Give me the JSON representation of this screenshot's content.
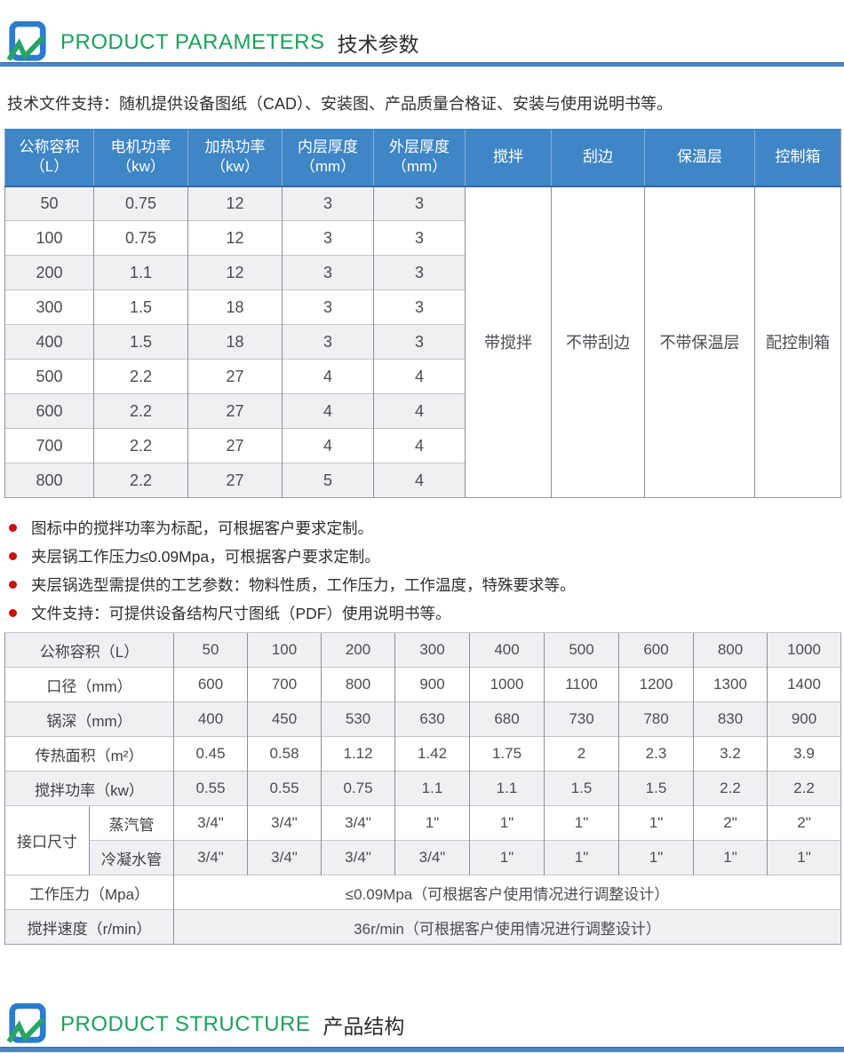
{
  "colors": {
    "header_bg": "#3e86c5",
    "accent_green": "#1ca05c",
    "divider_blue": "#4a84c4",
    "bullet_red": "#cc0d0d",
    "row_alt": "#f0f0f3"
  },
  "header_top": {
    "title_en": "PRODUCT PARAMETERS",
    "title_cn": "技术参数"
  },
  "header_bottom": {
    "title_en": "PRODUCT STRUCTURE",
    "title_cn": "产品结构"
  },
  "intro": "技术文件支持：随机提供设备图纸（CAD）、安装图、产品质量合格证、安装与使用说明书等。",
  "table1": {
    "headers": [
      [
        "公称容积",
        "（L）"
      ],
      [
        "电机功率",
        "（kw）"
      ],
      [
        "加热功率",
        "（kw）"
      ],
      [
        "内层厚度",
        "（mm）"
      ],
      [
        "外层厚度",
        "（mm）"
      ],
      [
        "搅拌"
      ],
      [
        "刮边"
      ],
      [
        "保温层"
      ],
      [
        "控制箱"
      ]
    ],
    "rows": [
      [
        "50",
        "0.75",
        "12",
        "3",
        "3"
      ],
      [
        "100",
        "0.75",
        "12",
        "3",
        "3"
      ],
      [
        "200",
        "1.1",
        "12",
        "3",
        "3"
      ],
      [
        "300",
        "1.5",
        "18",
        "3",
        "3"
      ],
      [
        "400",
        "1.5",
        "18",
        "3",
        "3"
      ],
      [
        "500",
        "2.2",
        "27",
        "4",
        "4"
      ],
      [
        "600",
        "2.2",
        "27",
        "4",
        "4"
      ],
      [
        "700",
        "2.2",
        "27",
        "4",
        "4"
      ],
      [
        "800",
        "2.2",
        "27",
        "5",
        "4"
      ]
    ],
    "merged": [
      "带搅拌",
      "不带刮边",
      "不带保温层",
      "配控制箱"
    ]
  },
  "bullets": [
    "图标中的搅拌功率为标配，可根据客户要求定制。",
    "夹层锅工作压力≤0.09Mpa，可根据客户要求定制。",
    "夹层锅选型需提供的工艺参数：物料性质，工作压力，工作温度，特殊要求等。",
    "文件支持：可提供设备结构尺寸图纸（PDF）使用说明书等。"
  ],
  "table2": {
    "rows": [
      {
        "label": "公称容积（L）",
        "values": [
          "50",
          "100",
          "200",
          "300",
          "400",
          "500",
          "600",
          "800",
          "1000"
        ]
      },
      {
        "label": "口径（mm）",
        "values": [
          "600",
          "700",
          "800",
          "900",
          "1000",
          "1100",
          "1200",
          "1300",
          "1400"
        ]
      },
      {
        "label": "锅深（mm）",
        "values": [
          "400",
          "450",
          "530",
          "630",
          "680",
          "730",
          "780",
          "830",
          "900"
        ]
      },
      {
        "label": "传热面积（m²）",
        "values": [
          "0.45",
          "0.58",
          "1.12",
          "1.42",
          "1.75",
          "2",
          "2.3",
          "3.2",
          "3.9"
        ]
      },
      {
        "label": "搅拌功率（kw）",
        "values": [
          "0.55",
          "0.55",
          "0.75",
          "1.1",
          "1.1",
          "1.5",
          "1.5",
          "2.2",
          "2.2"
        ]
      },
      {
        "group": "接口尺寸",
        "label": "蒸汽管",
        "values": [
          "3/4\"",
          "3/4\"",
          "3/4\"",
          "1\"",
          "1\"",
          "1\"",
          "1\"",
          "2\"",
          "2\""
        ]
      },
      {
        "sub": true,
        "label": "冷凝水管",
        "values": [
          "3/4\"",
          "3/4\"",
          "3/4\"",
          "3/4\"",
          "1\"",
          "1\"",
          "1\"",
          "1\"",
          "1\""
        ]
      },
      {
        "label": "工作压力（Mpa）",
        "span": "≤0.09Mpa（可根据客户使用情况进行调整设计）"
      },
      {
        "label": "搅拌速度（r/min）",
        "span": "36r/min（可根据客户使用情况进行调整设计）"
      }
    ]
  }
}
